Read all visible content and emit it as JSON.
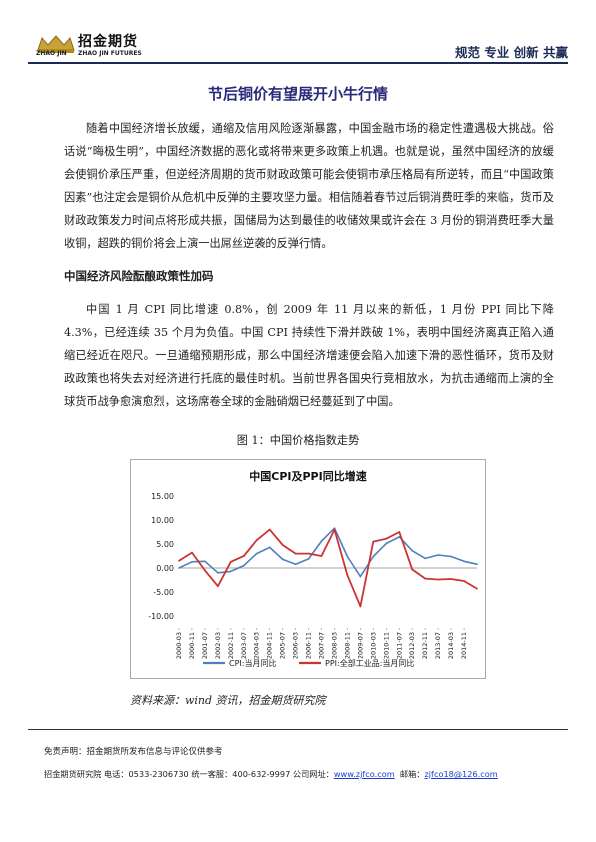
{
  "header": {
    "logo_cn": "招金期货",
    "logo_en_left": "ZHAO JIN",
    "logo_en_right": "ZHAO JIN FUTURES",
    "slogan": "规范 专业 创新 共赢"
  },
  "title": "节后铜价有望展开小牛行情",
  "paragraph1": "随着中国经济增长放缓，通缩及信用风险逐渐暴露，中国金融市场的稳定性遭遇极大挑战。俗话说“晦极生明”，中国经济数据的恶化或将带来更多政策上机遇。也就是说，虽然中国经济的放缓会使铜价承压严重，但逆经济周期的货币财政政策可能会使铜市承压格局有所逆转，而且“中国政策因素”也注定会是铜价从危机中反弹的主要攻坚力量。相信随着春节过后铜消费旺季的来临，货币及财政政策发力时间点将形成共振，国储局为达到最佳的收储效果或许会在 3 月份的铜消费旺季大量收铜，超跌的铜价将会上演一出屌丝逆袭的反弹行情。",
  "subhead": "中国经济风险酝酿政策性加码",
  "paragraph2": "中国 1 月 CPI 同比增速 0.8%，创 2009 年 11 月以来的新低，1 月份 PPI 同比下降 4.3%，已经连续 35 个月为负值。中国 CPI 持续性下滑并跌破 1%，表明中国经济离真正陷入通缩已经近在咫尺。一旦通缩预期形成，那么中国经济增速便会陷入加速下滑的恶性循环，货币及财政政策也将失去对经济进行托底的最佳时机。当前世界各国央行竞相放水，为抗击通缩而上演的全球货币战争愈演愈烈，这场席卷全球的金融硝烟已经蔓延到了中国。",
  "figure_caption": "图 1：中国价格指数走势",
  "chart_data": {
    "type": "line",
    "title": "中国CPI及PPI同比增速",
    "xlabel": "",
    "ylabel": "",
    "ylim": [
      -10,
      15
    ],
    "yticks": [
      "15.00",
      "10.00",
      "5.00",
      "0.00",
      "-5.00",
      "-10.00"
    ],
    "xticks": [
      "2000-03",
      "2000-11",
      "2001-07",
      "2002-03",
      "2002-11",
      "2003-07",
      "2004-03",
      "2004-11",
      "2005-07",
      "2006-03",
      "2006-11",
      "2007-07",
      "2008-03",
      "2008-11",
      "2009-07",
      "2010-03",
      "2010-11",
      "2011-07",
      "2012-03",
      "2012-11",
      "2013-07",
      "2014-03",
      "2014-11"
    ],
    "x": [
      "2000-03",
      "2000-11",
      "2001-07",
      "2002-03",
      "2002-11",
      "2003-07",
      "2004-03",
      "2004-11",
      "2005-07",
      "2006-03",
      "2006-11",
      "2007-07",
      "2008-03",
      "2008-11",
      "2009-07",
      "2010-03",
      "2010-11",
      "2011-07",
      "2012-03",
      "2012-11",
      "2013-07",
      "2014-03",
      "2014-11",
      "2015-01"
    ],
    "series": [
      {
        "name": "CPI:当月同比",
        "color": "#4f7fc0",
        "values": [
          0.0,
          1.3,
          1.4,
          -1.0,
          -0.7,
          0.5,
          3.0,
          4.3,
          1.8,
          0.8,
          1.9,
          5.6,
          8.3,
          2.4,
          -1.8,
          2.4,
          5.1,
          6.5,
          3.6,
          2.0,
          2.7,
          2.4,
          1.4,
          0.8
        ]
      },
      {
        "name": "PPI:全部工业品:当月同比",
        "color": "#cc3333",
        "values": [
          1.5,
          3.2,
          -0.5,
          -3.8,
          1.3,
          2.5,
          5.8,
          8.0,
          4.8,
          3.0,
          3.0,
          2.5,
          8.0,
          -1.5,
          -8.0,
          5.5,
          6.1,
          7.5,
          -0.3,
          -2.2,
          -2.4,
          -2.3,
          -2.7,
          -4.3
        ]
      }
    ],
    "legend_position": "bottom",
    "grid": false
  },
  "source": "资料来源：wind 资讯，招金期货研究院",
  "footer": {
    "disclaimer": "免责声明：招金期货所发布信息与评论仅供参考",
    "contact_prefix": "招金期货研究院 电话：0533-2306730 统一客服：400-632-9997 公司网址：",
    "website": "www.zjfco.com",
    "email_label": "邮箱：",
    "email": "zjfco18@126.com"
  },
  "colors": {
    "brand_navy": "#1a2a55",
    "title_color": "#2a2a7a",
    "link_blue": "#1a3ccf"
  }
}
